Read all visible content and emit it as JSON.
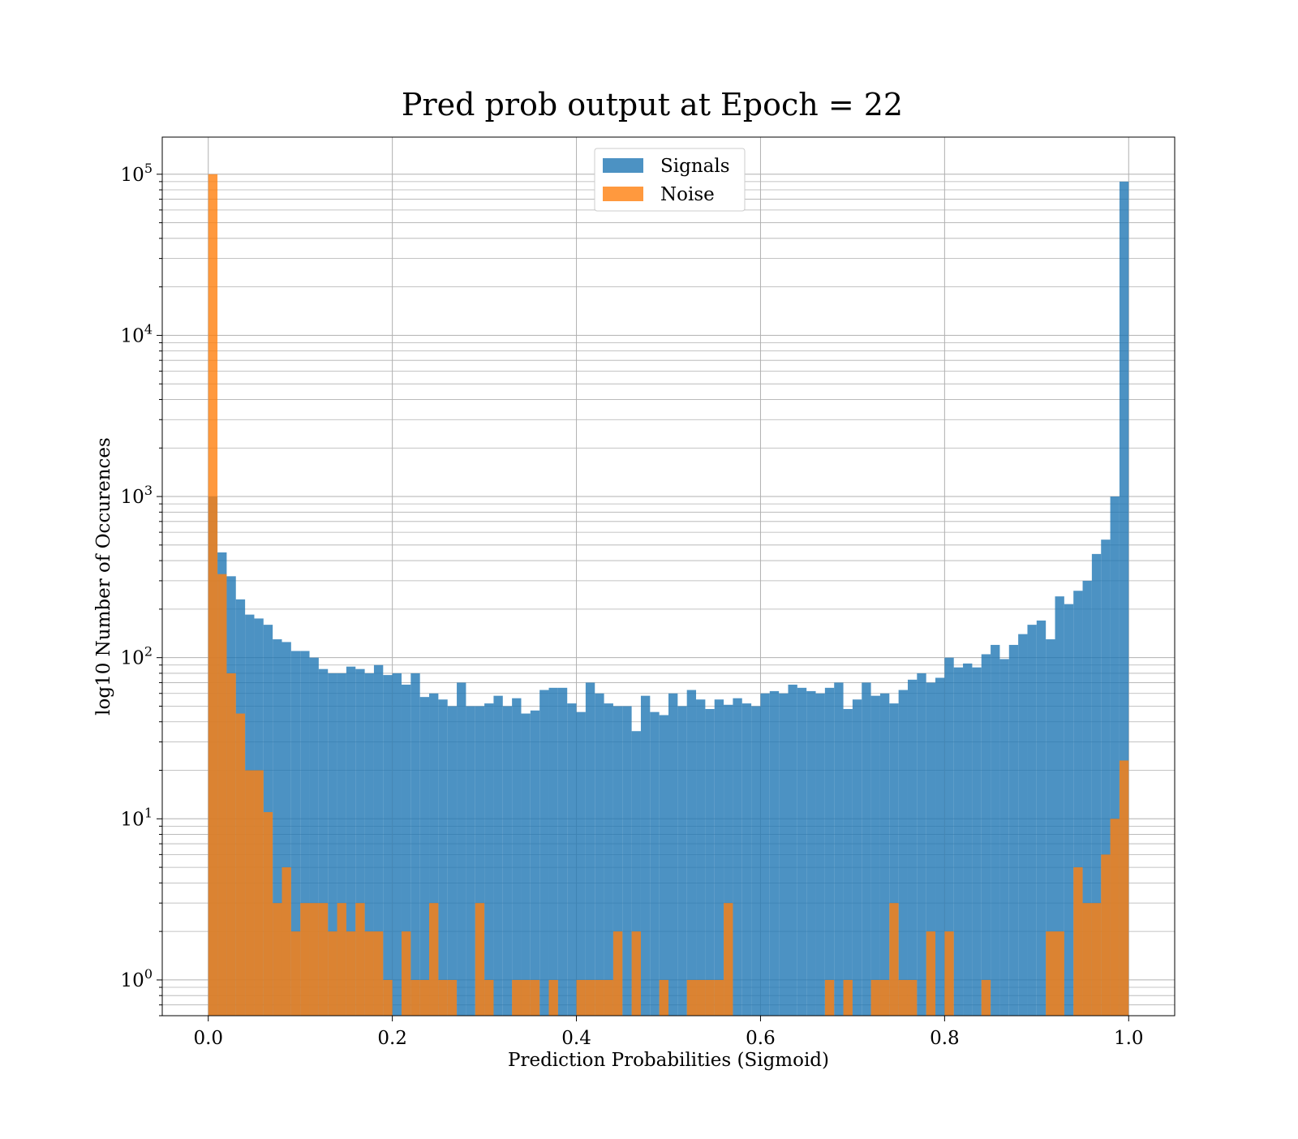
{
  "chart_data": {
    "type": "bar",
    "title": "Pred prob output at Epoch = 22",
    "xlabel": "Prediction Probabilities (Sigmoid)",
    "ylabel": "log10 Number of Occurences",
    "yscale": "log",
    "xlim": [
      -0.05,
      1.05
    ],
    "ylim": [
      0.6,
      170000
    ],
    "grid": true,
    "legend_position": "top-center",
    "bins": {
      "start": 0.0,
      "end": 1.0,
      "count": 100
    },
    "x_ticks": [
      {
        "value": 0.0,
        "label": "0.0"
      },
      {
        "value": 0.2,
        "label": "0.2"
      },
      {
        "value": 0.4,
        "label": "0.4"
      },
      {
        "value": 0.6,
        "label": "0.6"
      },
      {
        "value": 0.8,
        "label": "0.8"
      },
      {
        "value": 1.0,
        "label": "1.0"
      }
    ],
    "y_ticks": [
      {
        "value": 1,
        "base": "10",
        "exp": "0"
      },
      {
        "value": 10,
        "base": "10",
        "exp": "1"
      },
      {
        "value": 100,
        "base": "10",
        "exp": "2"
      },
      {
        "value": 1000,
        "base": "10",
        "exp": "3"
      },
      {
        "value": 10000,
        "base": "10",
        "exp": "4"
      },
      {
        "value": 100000,
        "base": "10",
        "exp": "5"
      }
    ],
    "series": [
      {
        "name": "Signals",
        "color": "#1f77b4",
        "opacity": 0.8,
        "values": [
          1000,
          450,
          320,
          230,
          185,
          175,
          160,
          130,
          125,
          110,
          110,
          100,
          85,
          80,
          80,
          88,
          85,
          80,
          90,
          78,
          80,
          68,
          80,
          57,
          60,
          55,
          50,
          70,
          50,
          50,
          52,
          58,
          50,
          56,
          45,
          47,
          63,
          65,
          65,
          52,
          46,
          70,
          60,
          52,
          50,
          50,
          35,
          58,
          46,
          44,
          60,
          50,
          63,
          55,
          48,
          55,
          51,
          56,
          52,
          50,
          60,
          62,
          60,
          68,
          65,
          62,
          60,
          65,
          70,
          48,
          55,
          70,
          58,
          60,
          52,
          63,
          73,
          80,
          70,
          75,
          100,
          87,
          92,
          87,
          105,
          120,
          98,
          120,
          140,
          160,
          170,
          130,
          240,
          215,
          260,
          300,
          440,
          540,
          1000,
          90000
        ]
      },
      {
        "name": "Noise",
        "color": "#ff7f0e",
        "opacity": 0.8,
        "values": [
          100000,
          330,
          80,
          45,
          20,
          20,
          11,
          3,
          5,
          2,
          3,
          3,
          3,
          2,
          3,
          2,
          3,
          2,
          2,
          1,
          0,
          2,
          1,
          1,
          3,
          1,
          1,
          0,
          0,
          3,
          1,
          0,
          0,
          1,
          1,
          1,
          0,
          1,
          0,
          0,
          1,
          1,
          1,
          1,
          2,
          0,
          2,
          0,
          0,
          1,
          0,
          0,
          1,
          1,
          1,
          1,
          3,
          0,
          0,
          0,
          0,
          0,
          0,
          0,
          0,
          0,
          0,
          1,
          0,
          1,
          0,
          0,
          1,
          1,
          3,
          1,
          1,
          0,
          2,
          0,
          2,
          0,
          0,
          0,
          1,
          0,
          0,
          0,
          0,
          0,
          0,
          2,
          2,
          0,
          5,
          3,
          3,
          6,
          10,
          23
        ]
      }
    ]
  }
}
